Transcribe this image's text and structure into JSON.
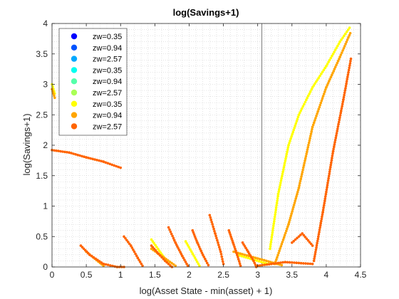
{
  "chart_data": {
    "type": "scatter",
    "title": "log(Savings+1)",
    "xlabel": "log(Asset State - min(asset) + 1)",
    "ylabel": "log(Savings+1)",
    "xlim": [
      0,
      4.5
    ],
    "ylim": [
      0,
      4
    ],
    "xticks": [
      "0",
      "0.5",
      "1",
      "1.5",
      "2",
      "2.5",
      "3",
      "3.5",
      "4",
      "4.5"
    ],
    "yticks": [
      "0",
      "0.5",
      "1",
      "1.5",
      "2",
      "2.5",
      "3",
      "3.5",
      "4"
    ],
    "grid": "minor dotted",
    "legend_position": "top-left",
    "vertical_reference_line_x": 3.06,
    "series": [
      {
        "name": "zw=0.35",
        "color": "#0000ff",
        "points": []
      },
      {
        "name": "zw=0.94",
        "color": "#0053ff",
        "points": []
      },
      {
        "name": "zw=2.57",
        "color": "#00a8ff",
        "points": []
      },
      {
        "name": "zw=0.35",
        "color": "#00fff0",
        "points": []
      },
      {
        "name": "zw=0.94",
        "color": "#55ffaa",
        "points": []
      },
      {
        "name": "zw=2.57",
        "color": "#aaff55",
        "points": []
      },
      {
        "name": "zw=0.35",
        "color": "#ffff00",
        "segments": [
          {
            "x": [
              0.0,
              0.04
            ],
            "y": [
              3.0,
              2.85
            ]
          },
          {
            "x": [
              1.45,
              1.7
            ],
            "y": [
              0.45,
              0.05
            ]
          },
          {
            "x": [
              1.95,
              2.15
            ],
            "y": [
              0.42,
              0.02
            ]
          },
          {
            "x": [
              2.7,
              3.15
            ],
            "y": [
              0.2,
              0.05
            ]
          },
          {
            "x": [
              3.18,
              3.3,
              3.45,
              3.6,
              3.8,
              4.0,
              4.2,
              4.34
            ],
            "y": [
              0.3,
              1.2,
              2.0,
              2.5,
              2.95,
              3.3,
              3.7,
              3.93
            ]
          }
        ]
      },
      {
        "name": "zw=0.94",
        "color": "#ffa500",
        "segments": [
          {
            "x": [
              0.0,
              0.04
            ],
            "y": [
              2.92,
              2.78
            ]
          },
          {
            "x": [
              0.5,
              0.75
            ],
            "y": [
              0.25,
              0.02
            ]
          },
          {
            "x": [
              1.45,
              1.8
            ],
            "y": [
              0.3,
              0.02
            ]
          },
          {
            "x": [
              2.65,
              3.35
            ],
            "y": [
              0.25,
              0.03
            ]
          },
          {
            "x": [
              3.25,
              3.45,
              3.6,
              3.8,
              4.0,
              4.2,
              4.35
            ],
            "y": [
              0.05,
              0.7,
              1.3,
              2.3,
              2.95,
              3.45,
              3.84
            ]
          }
        ]
      },
      {
        "name": "zw=2.57",
        "color": "#ff6400",
        "segments": [
          {
            "x": [
              0.0,
              0.25,
              0.5,
              0.75,
              1.0
            ],
            "y": [
              1.92,
              1.88,
              1.8,
              1.73,
              1.63
            ]
          },
          {
            "x": [
              0.42,
              0.55,
              0.75,
              0.95,
              1.05
            ],
            "y": [
              0.35,
              0.2,
              0.05,
              0.0,
              0.0
            ]
          },
          {
            "x": [
              1.05,
              1.15,
              1.25,
              1.32
            ],
            "y": [
              0.5,
              0.35,
              0.15,
              0.02
            ]
          },
          {
            "x": [
              1.45,
              1.55,
              1.65,
              1.75
            ],
            "y": [
              0.35,
              0.22,
              0.1,
              0.0
            ]
          },
          {
            "x": [
              1.7,
              1.8,
              1.9,
              1.98
            ],
            "y": [
              0.65,
              0.4,
              0.18,
              0.02
            ]
          },
          {
            "x": [
              2.05,
              2.12,
              2.2,
              2.28
            ],
            "y": [
              0.6,
              0.4,
              0.2,
              0.03
            ]
          },
          {
            "x": [
              2.3,
              2.38,
              2.46,
              2.5
            ],
            "y": [
              0.85,
              0.55,
              0.25,
              0.05
            ]
          },
          {
            "x": [
              2.58,
              2.64,
              2.7,
              2.75
            ],
            "y": [
              0.6,
              0.4,
              0.2,
              0.02
            ]
          },
          {
            "x": [
              2.78,
              2.86,
              2.94,
              2.98
            ],
            "y": [
              0.4,
              0.25,
              0.1,
              0.0
            ]
          },
          {
            "x": [
              3.0,
              3.4,
              3.8
            ],
            "y": [
              0.02,
              0.08,
              0.05
            ]
          },
          {
            "x": [
              3.5,
              3.65,
              3.8
            ],
            "y": [
              0.4,
              0.55,
              0.35
            ]
          },
          {
            "x": [
              3.82,
              3.95,
              4.1,
              4.25,
              4.36
            ],
            "y": [
              0.1,
              0.9,
              1.9,
              2.75,
              3.42
            ]
          }
        ]
      }
    ]
  }
}
